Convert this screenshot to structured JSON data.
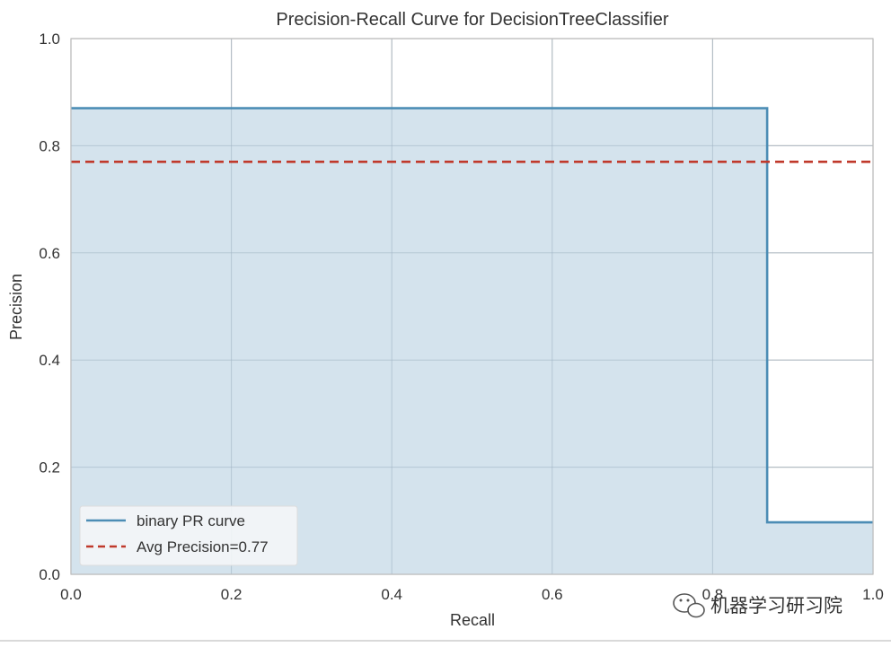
{
  "chart_data": {
    "type": "line",
    "title": "Precision-Recall Curve for DecisionTreeClassifier",
    "xlabel": "Recall",
    "ylabel": "Precision",
    "xlim": [
      0,
      1
    ],
    "ylim": [
      0,
      1
    ],
    "xticks": [
      0.0,
      0.2,
      0.4,
      0.6,
      0.8,
      1.0
    ],
    "xtick_labels": [
      "0.0",
      "0.2",
      "0.4",
      "0.6",
      "0.8",
      "1.0"
    ],
    "yticks": [
      0.0,
      0.2,
      0.4,
      0.6,
      0.8,
      1.0
    ],
    "ytick_labels": [
      "0.0",
      "0.2",
      "0.4",
      "0.6",
      "0.8",
      "1.0"
    ],
    "grid": true,
    "legend_position": "lower-left",
    "series": [
      {
        "name": "binary PR curve",
        "style": "solid-step",
        "color": "#4c8db5",
        "fill_color": "#d2e1ec",
        "points": [
          [
            0.0,
            0.87
          ],
          [
            0.868,
            0.87
          ],
          [
            0.868,
            0.097
          ],
          [
            1.0,
            0.097
          ]
        ]
      },
      {
        "name": "Avg Precision=0.77",
        "style": "dashed",
        "color": "#c0392b",
        "y": 0.77
      }
    ]
  },
  "watermark": {
    "text": "机器学习研习院",
    "icon": "wechat-icon"
  },
  "colors": {
    "grid": "#c8c8c8",
    "axes_border": "#bdbdbd",
    "text": "#333333"
  }
}
